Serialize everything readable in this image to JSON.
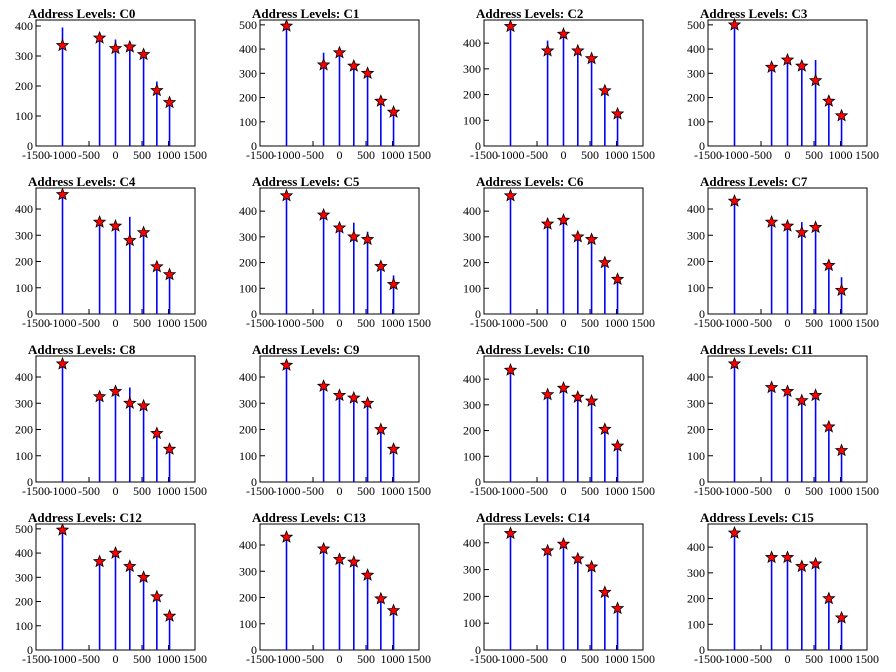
{
  "colors": {
    "histogram": "#0000ff",
    "marker_fill": "#ff0000",
    "marker_stroke": "#000000",
    "frame": "#000000",
    "background": "#ffffff"
  },
  "chart_data": [
    {
      "type": "bar",
      "title": "Address Levels: C0",
      "xlim": [
        -1500,
        1500
      ],
      "ylim": [
        0,
        420
      ],
      "yticks": [
        0,
        100,
        200,
        300,
        400
      ],
      "xticks": [
        -1500,
        -1000,
        -500,
        0,
        500,
        1000,
        1500
      ],
      "xticklabels": [
        "-1500",
        "-1000",
        "-500",
        "0",
        "500",
        "1000",
        "1500"
      ],
      "peaks": [
        -1000,
        -300,
        0,
        270,
        530,
        780,
        1020
      ],
      "values": [
        395,
        360,
        355,
        330,
        300,
        215,
        145
      ],
      "markers": [
        335,
        360,
        325,
        330,
        305,
        185,
        145
      ]
    },
    {
      "type": "bar",
      "title": "Address Levels: C1",
      "xlim": [
        -1500,
        1500
      ],
      "ylim": [
        0,
        520
      ],
      "yticks": [
        0,
        100,
        200,
        300,
        400,
        500
      ],
      "xticks": [
        -1500,
        -1000,
        -500,
        0,
        500,
        1000,
        1500
      ],
      "xticklabels": [
        "-1500",
        "-1000",
        "-500",
        "0",
        "500",
        "1000",
        "1500"
      ],
      "peaks": [
        -1000,
        -300,
        0,
        270,
        530,
        780,
        1020
      ],
      "values": [
        500,
        385,
        390,
        335,
        300,
        200,
        140
      ],
      "markers": [
        495,
        335,
        385,
        330,
        300,
        185,
        140
      ]
    },
    {
      "type": "bar",
      "title": "Address Levels: C2",
      "xlim": [
        -1500,
        1500
      ],
      "ylim": [
        0,
        490
      ],
      "yticks": [
        0,
        100,
        200,
        300,
        400
      ],
      "xticks": [
        -1500,
        -1000,
        -500,
        0,
        500,
        1000,
        1500
      ],
      "xticklabels": [
        "-1500",
        "-1000",
        "-500",
        "0",
        "500",
        "1000",
        "1500"
      ],
      "peaks": [
        -1000,
        -300,
        0,
        270,
        530,
        780,
        1020
      ],
      "values": [
        470,
        410,
        440,
        380,
        350,
        225,
        135
      ],
      "markers": [
        465,
        370,
        435,
        370,
        340,
        215,
        125
      ]
    },
    {
      "type": "bar",
      "title": "Address Levels: C3",
      "xlim": [
        -1500,
        1500
      ],
      "ylim": [
        0,
        520
      ],
      "yticks": [
        0,
        100,
        200,
        300,
        400,
        500
      ],
      "xticks": [
        -1500,
        -1000,
        -500,
        0,
        500,
        1000,
        1500
      ],
      "xticklabels": [
        "-1500",
        "-1000",
        "-500",
        "0",
        "500",
        "1000",
        "1500"
      ],
      "peaks": [
        -1000,
        -300,
        0,
        270,
        530,
        780,
        1020
      ],
      "values": [
        500,
        345,
        365,
        345,
        355,
        195,
        135
      ],
      "markers": [
        500,
        325,
        355,
        330,
        270,
        185,
        125
      ]
    },
    {
      "type": "bar",
      "title": "Address Levels: C4",
      "xlim": [
        -1500,
        1500
      ],
      "ylim": [
        0,
        480
      ],
      "yticks": [
        0,
        100,
        200,
        300,
        400
      ],
      "xticks": [
        -1500,
        -1000,
        -500,
        0,
        500,
        1000,
        1500
      ],
      "xticklabels": [
        "-1500",
        "-1000",
        "-500",
        "0",
        "500",
        "1000",
        "1500"
      ],
      "peaks": [
        -1000,
        -300,
        0,
        270,
        530,
        780,
        1020
      ],
      "values": [
        460,
        365,
        345,
        370,
        325,
        190,
        155
      ],
      "markers": [
        455,
        350,
        335,
        280,
        310,
        180,
        150
      ]
    },
    {
      "type": "bar",
      "title": "Address Levels: C5",
      "xlim": [
        -1500,
        1500
      ],
      "ylim": [
        0,
        490
      ],
      "yticks": [
        0,
        100,
        200,
        300,
        400
      ],
      "xticks": [
        -1500,
        -1000,
        -500,
        0,
        500,
        1000,
        1500
      ],
      "xticklabels": [
        "-1500",
        "-1000",
        "-500",
        "0",
        "500",
        "1000",
        "1500"
      ],
      "peaks": [
        -1000,
        -300,
        0,
        270,
        530,
        780,
        1020
      ],
      "values": [
        465,
        390,
        350,
        355,
        320,
        195,
        150
      ],
      "markers": [
        460,
        385,
        335,
        300,
        290,
        185,
        115
      ]
    },
    {
      "type": "bar",
      "title": "Address Levels: C6",
      "xlim": [
        -1500,
        1500
      ],
      "ylim": [
        0,
        490
      ],
      "yticks": [
        0,
        100,
        200,
        300,
        400
      ],
      "xticks": [
        -1500,
        -1000,
        -500,
        0,
        500,
        1000,
        1500
      ],
      "xticklabels": [
        "-1500",
        "-1000",
        "-500",
        "0",
        "500",
        "1000",
        "1500"
      ],
      "peaks": [
        -1000,
        -300,
        0,
        270,
        530,
        780,
        1020
      ],
      "values": [
        460,
        370,
        375,
        310,
        300,
        210,
        145
      ],
      "markers": [
        460,
        350,
        365,
        300,
        290,
        200,
        135
      ]
    },
    {
      "type": "bar",
      "title": "Address Levels: C7",
      "xlim": [
        -1500,
        1500
      ],
      "ylim": [
        0,
        480
      ],
      "yticks": [
        0,
        100,
        200,
        300,
        400
      ],
      "xticks": [
        -1500,
        -1000,
        -500,
        0,
        500,
        1000,
        1500
      ],
      "xticklabels": [
        "-1500",
        "-1000",
        "-500",
        "0",
        "500",
        "1000",
        "1500"
      ],
      "peaks": [
        -1000,
        -300,
        0,
        270,
        530,
        780,
        1020
      ],
      "values": [
        440,
        360,
        345,
        350,
        335,
        190,
        140
      ],
      "markers": [
        430,
        350,
        335,
        310,
        330,
        185,
        90
      ]
    },
    {
      "type": "bar",
      "title": "Address Levels: C8",
      "xlim": [
        -1500,
        1500
      ],
      "ylim": [
        0,
        480
      ],
      "yticks": [
        0,
        100,
        200,
        300,
        400
      ],
      "xticks": [
        -1500,
        -1000,
        -500,
        0,
        500,
        1000,
        1500
      ],
      "xticklabels": [
        "-1500",
        "-1000",
        "-500",
        "0",
        "500",
        "1000",
        "1500"
      ],
      "peaks": [
        -1000,
        -300,
        0,
        270,
        530,
        780,
        1020
      ],
      "values": [
        455,
        340,
        350,
        360,
        300,
        190,
        130
      ],
      "markers": [
        450,
        325,
        345,
        300,
        290,
        185,
        125
      ]
    },
    {
      "type": "bar",
      "title": "Address Levels: C9",
      "xlim": [
        -1500,
        1500
      ],
      "ylim": [
        0,
        480
      ],
      "yticks": [
        0,
        100,
        200,
        300,
        400
      ],
      "xticks": [
        -1500,
        -1000,
        -500,
        0,
        500,
        1000,
        1500
      ],
      "xticklabels": [
        "-1500",
        "-1000",
        "-500",
        "0",
        "500",
        "1000",
        "1500"
      ],
      "peaks": [
        -1000,
        -300,
        0,
        270,
        530,
        780,
        1020
      ],
      "values": [
        450,
        370,
        345,
        330,
        310,
        210,
        135
      ],
      "markers": [
        445,
        365,
        330,
        320,
        300,
        200,
        125
      ]
    },
    {
      "type": "bar",
      "title": "Address Levels: C10",
      "xlim": [
        -1500,
        1500
      ],
      "ylim": [
        0,
        490
      ],
      "yticks": [
        0,
        100,
        200,
        300,
        400
      ],
      "xticks": [
        -1500,
        -1000,
        -500,
        0,
        500,
        1000,
        1500
      ],
      "xticklabels": [
        "-1500",
        "-1000",
        "-500",
        "0",
        "500",
        "1000",
        "1500"
      ],
      "peaks": [
        -1000,
        -300,
        0,
        270,
        530,
        780,
        1020
      ],
      "values": [
        440,
        350,
        380,
        340,
        320,
        210,
        145
      ],
      "markers": [
        435,
        340,
        365,
        330,
        315,
        205,
        140
      ]
    },
    {
      "type": "bar",
      "title": "Address Levels: C11",
      "xlim": [
        -1500,
        1500
      ],
      "ylim": [
        0,
        480
      ],
      "yticks": [
        0,
        100,
        200,
        300,
        400
      ],
      "xticks": [
        -1500,
        -1000,
        -500,
        0,
        500,
        1000,
        1500
      ],
      "xticklabels": [
        "-1500",
        "-1000",
        "-500",
        "0",
        "500",
        "1000",
        "1500"
      ],
      "peaks": [
        -1000,
        -300,
        0,
        270,
        530,
        780,
        1020
      ],
      "values": [
        455,
        370,
        355,
        325,
        345,
        220,
        130
      ],
      "markers": [
        450,
        360,
        345,
        310,
        330,
        210,
        120
      ]
    },
    {
      "type": "bar",
      "title": "Address Levels: C12",
      "xlim": [
        -1500,
        1500
      ],
      "ylim": [
        0,
        520
      ],
      "yticks": [
        0,
        100,
        200,
        300,
        400,
        500
      ],
      "xticks": [
        -1500,
        -1000,
        -500,
        0,
        500,
        1000,
        1500
      ],
      "xticklabels": [
        "-1500",
        "-1000",
        "-500",
        "0",
        "500",
        "1000",
        "1500"
      ],
      "peaks": [
        -1000,
        -300,
        0,
        270,
        530,
        780,
        1020
      ],
      "values": [
        500,
        375,
        410,
        350,
        310,
        225,
        150
      ],
      "markers": [
        495,
        365,
        400,
        345,
        300,
        220,
        140
      ]
    },
    {
      "type": "bar",
      "title": "Address Levels: C13",
      "xlim": [
        -1500,
        1500
      ],
      "ylim": [
        0,
        480
      ],
      "yticks": [
        0,
        100,
        200,
        300,
        400
      ],
      "xticks": [
        -1500,
        -1000,
        -500,
        0,
        500,
        1000,
        1500
      ],
      "xticklabels": [
        "-1500",
        "-1000",
        "-500",
        "0",
        "500",
        "1000",
        "1500"
      ],
      "peaks": [
        -1000,
        -300,
        0,
        270,
        530,
        780,
        1020
      ],
      "values": [
        440,
        395,
        365,
        350,
        300,
        210,
        160
      ],
      "markers": [
        430,
        385,
        345,
        335,
        285,
        195,
        150
      ]
    },
    {
      "type": "bar",
      "title": "Address Levels: C14",
      "xlim": [
        -1500,
        1500
      ],
      "ylim": [
        0,
        470
      ],
      "yticks": [
        0,
        100,
        200,
        300,
        400
      ],
      "xticks": [
        -1500,
        -1000,
        -500,
        0,
        500,
        1000,
        1500
      ],
      "xticklabels": [
        "-1500",
        "-1000",
        "-500",
        "0",
        "500",
        "1000",
        "1500"
      ],
      "peaks": [
        -1000,
        -300,
        0,
        270,
        530,
        780,
        1020
      ],
      "values": [
        445,
        380,
        405,
        350,
        320,
        220,
        165
      ],
      "markers": [
        435,
        370,
        395,
        340,
        310,
        215,
        155
      ]
    },
    {
      "type": "bar",
      "title": "Address Levels: C15",
      "xlim": [
        -1500,
        1500
      ],
      "ylim": [
        0,
        490
      ],
      "yticks": [
        0,
        100,
        200,
        300,
        400
      ],
      "xticks": [
        -1500,
        -1000,
        -500,
        0,
        500,
        1000,
        1500
      ],
      "xticklabels": [
        "-1500",
        "-1000",
        "-500",
        "0",
        "500",
        "1000",
        "1500"
      ],
      "peaks": [
        -1000,
        -300,
        0,
        270,
        530,
        780,
        1020
      ],
      "values": [
        460,
        370,
        370,
        335,
        340,
        205,
        135
      ],
      "markers": [
        455,
        360,
        360,
        325,
        335,
        200,
        125
      ]
    }
  ]
}
